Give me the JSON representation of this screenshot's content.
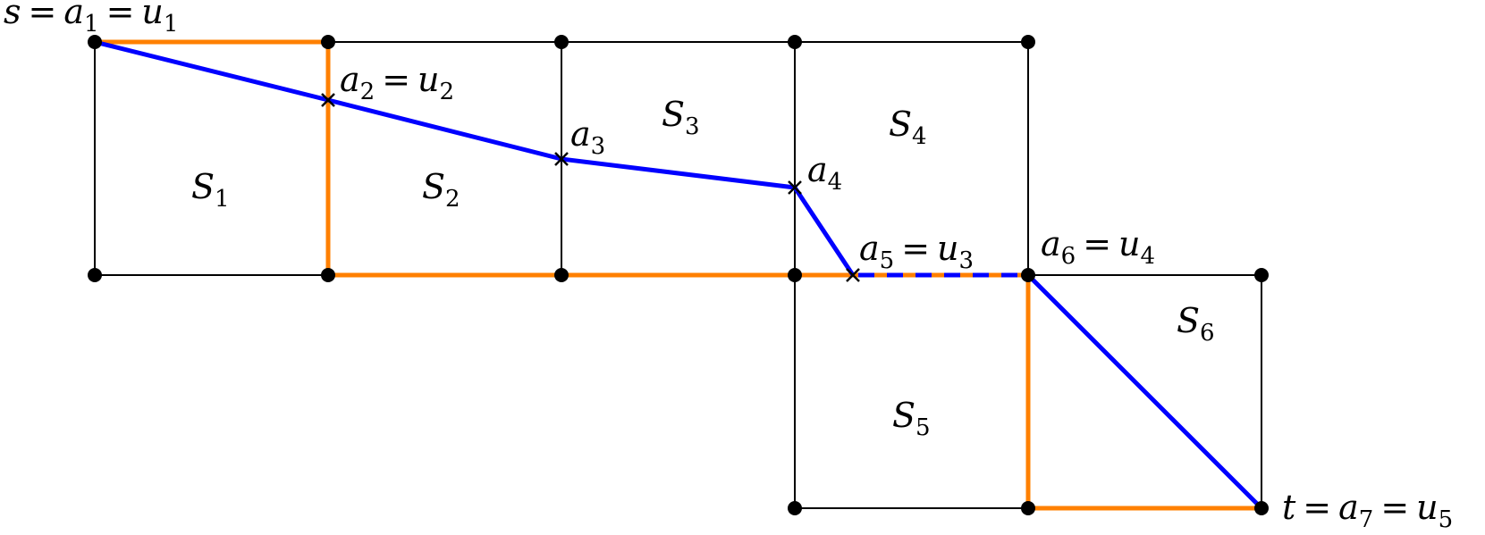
{
  "colors": {
    "grid": "#000000",
    "orange_path": "#ff8000",
    "blue_path": "#0000ff"
  },
  "cells": [
    {
      "name": "S",
      "sub": "1"
    },
    {
      "name": "S",
      "sub": "2"
    },
    {
      "name": "S",
      "sub": "3"
    },
    {
      "name": "S",
      "sub": "4"
    },
    {
      "name": "S",
      "sub": "5"
    },
    {
      "name": "S",
      "sub": "6"
    }
  ],
  "points": {
    "top_left": {
      "pre": "s",
      "eq1": "=",
      "a": "a",
      "a_sub": "1",
      "eq2": "=",
      "u": "u",
      "u_sub": "1"
    },
    "a2": {
      "a": "a",
      "a_sub": "2",
      "eq": "=",
      "u": "u",
      "u_sub": "2"
    },
    "a3": {
      "a": "a",
      "a_sub": "3"
    },
    "a4": {
      "a": "a",
      "a_sub": "4"
    },
    "a5": {
      "a": "a",
      "a_sub": "5",
      "eq": "=",
      "u": "u",
      "u_sub": "3"
    },
    "a6": {
      "a": "a",
      "a_sub": "6",
      "eq": "=",
      "u": "u",
      "u_sub": "4"
    },
    "bottom_right": {
      "pre": "t",
      "eq1": "=",
      "a": "a",
      "a_sub": "7",
      "eq2": "=",
      "u": "u",
      "u_sub": "5"
    }
  }
}
